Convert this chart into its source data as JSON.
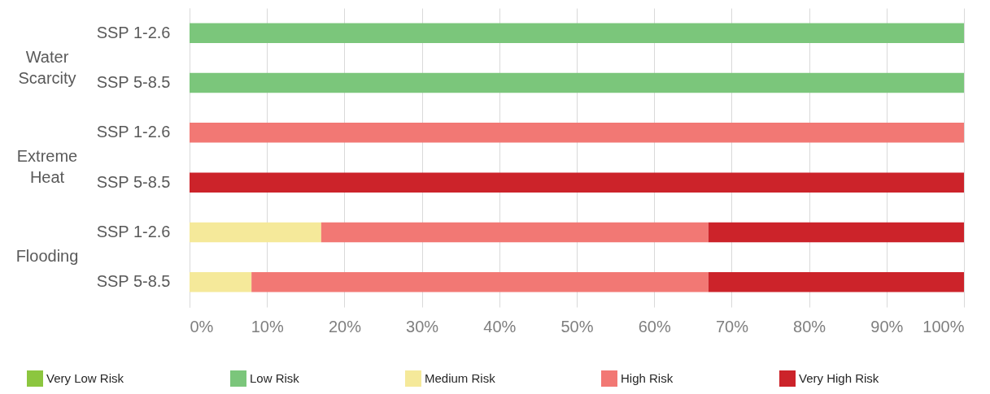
{
  "chart_data": {
    "type": "bar",
    "orientation": "horizontal",
    "stacked": true,
    "categories": [
      "SSP 1-2.6",
      "SSP 5-8.5",
      "SSP 1-2.6",
      "SSP 5-8.5",
      "SSP 1-2.6",
      "SSP 5-8.5"
    ],
    "series": [
      {
        "name": "Very Low Risk",
        "color": "#8cc63f",
        "values": [
          null,
          null,
          null,
          null,
          null,
          null
        ]
      },
      {
        "name": "Low Risk",
        "color": "#7bc67b",
        "values": [
          100,
          100,
          null,
          null,
          null,
          null
        ]
      },
      {
        "name": "Medium Risk",
        "color": "#f5e99a",
        "values": [
          null,
          null,
          null,
          null,
          17,
          8
        ]
      },
      {
        "name": "High Risk",
        "color": "#f27874",
        "values": [
          null,
          null,
          100,
          null,
          50,
          59
        ]
      },
      {
        "name": "Very High Risk",
        "color": "#cc232a",
        "values": [
          null,
          null,
          null,
          100,
          33,
          33
        ]
      }
    ],
    "annotations": [
      "Water Scarcity",
      "Extreme Heat",
      "Flooding"
    ],
    "xlim": [
      0,
      100
    ],
    "xticks": [
      {
        "value": 0,
        "label": "0%"
      },
      {
        "value": 10,
        "label": "10%"
      },
      {
        "value": 20,
        "label": "20%"
      },
      {
        "value": 30,
        "label": "30%"
      },
      {
        "value": 40,
        "label": "40%"
      },
      {
        "value": 50,
        "label": "50%"
      },
      {
        "value": 60,
        "label": "60%"
      },
      {
        "value": 70,
        "label": "70%"
      },
      {
        "value": 80,
        "label": "80%"
      },
      {
        "value": 90,
        "label": "90%"
      },
      {
        "value": 100,
        "label": "100%"
      }
    ],
    "grid": "x",
    "legend": "bottom"
  }
}
